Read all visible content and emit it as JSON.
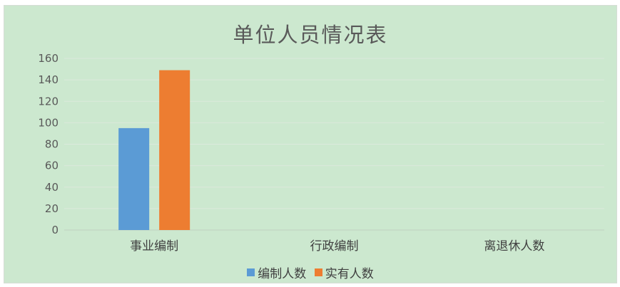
{
  "chart_data": {
    "type": "bar",
    "title": "单位人员情况表",
    "categories": [
      "事业编制",
      "行政编制",
      "离退休人数"
    ],
    "series": [
      {
        "name": "编制人数",
        "values": [
          95,
          0,
          0
        ],
        "color": "#5b9bd5"
      },
      {
        "name": "实有人数",
        "values": [
          149,
          0,
          0
        ],
        "color": "#ed7d31"
      }
    ],
    "ylim": [
      0,
      160
    ],
    "yticks": [
      0,
      20,
      40,
      60,
      80,
      100,
      120,
      140,
      160
    ],
    "grid": true,
    "legend_position": "bottom"
  }
}
